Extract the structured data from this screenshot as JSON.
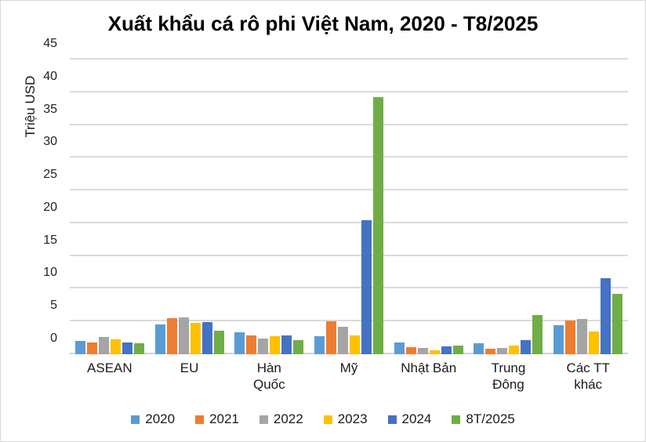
{
  "figure": {
    "title": "Xuất khẩu cá rô phi Việt Nam, 2020 - T8/2025",
    "y_axis_title": "Triệu USD"
  },
  "chart_data": {
    "type": "bar",
    "title": "Xuất khẩu cá rô phi Việt Nam, 2020 - T8/2025",
    "xlabel": "",
    "ylabel": "Triệu USD",
    "ylim": [
      0,
      45
    ],
    "ytick_step": 5,
    "grid": true,
    "legend_position": "bottom",
    "categories": [
      "ASEAN",
      "EU",
      "Hàn Quốc",
      "Mỹ",
      "Nhật Bản",
      "Trung Đông",
      "Các TT khác"
    ],
    "series": [
      {
        "name": "2020",
        "color": "#5B9BD5",
        "values": [
          2.0,
          4.5,
          3.3,
          2.7,
          1.8,
          1.7,
          4.4
        ]
      },
      {
        "name": "2021",
        "color": "#ED7D31",
        "values": [
          1.8,
          5.5,
          2.9,
          5.0,
          1.1,
          0.8,
          5.1
        ]
      },
      {
        "name": "2022",
        "color": "#A5A5A5",
        "values": [
          2.6,
          5.6,
          2.4,
          4.2,
          1.0,
          0.9,
          5.4
        ]
      },
      {
        "name": "2023",
        "color": "#FFC000",
        "values": [
          2.3,
          4.8,
          2.8,
          2.9,
          0.6,
          1.3,
          3.5
        ]
      },
      {
        "name": "2024",
        "color": "#4472C4",
        "values": [
          1.8,
          4.9,
          2.9,
          20.5,
          1.2,
          2.1,
          11.6
        ]
      },
      {
        "name": "8T/2025",
        "color": "#70AD47",
        "values": [
          1.7,
          3.6,
          2.2,
          39.3,
          1.3,
          6.0,
          9.2
        ]
      }
    ],
    "colors": {
      "gridline": "#DADADA",
      "axis_text": "#1A1A1A",
      "title_text": "#000000",
      "background": "#FFFFFF"
    }
  }
}
